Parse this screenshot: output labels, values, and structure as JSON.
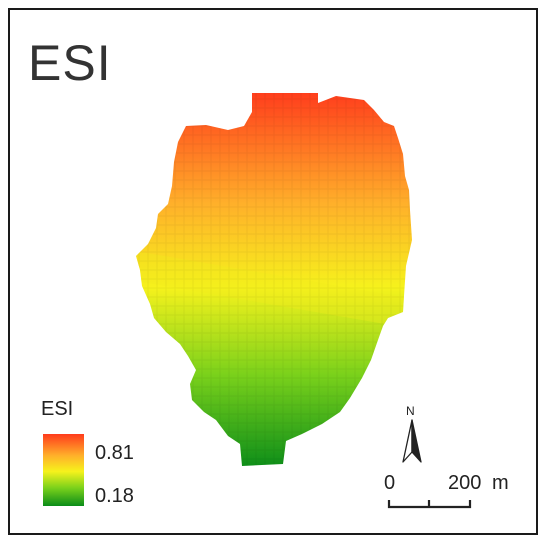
{
  "map": {
    "title": "ESI",
    "colors": {
      "high": "#ff3b1c",
      "upper": "#ffb02a",
      "mid": "#f6f21c",
      "lower": "#7ad11b",
      "low": "#0a8c19"
    }
  },
  "legend": {
    "title": "ESI",
    "max_label": "0.81",
    "min_label": "0.18",
    "max_value": 0.81,
    "min_value": 0.18
  },
  "north_arrow": {
    "label": "N",
    "icon": "north-arrow-icon"
  },
  "scale_bar": {
    "start_label": "0",
    "end_label": "200",
    "unit": "m"
  }
}
